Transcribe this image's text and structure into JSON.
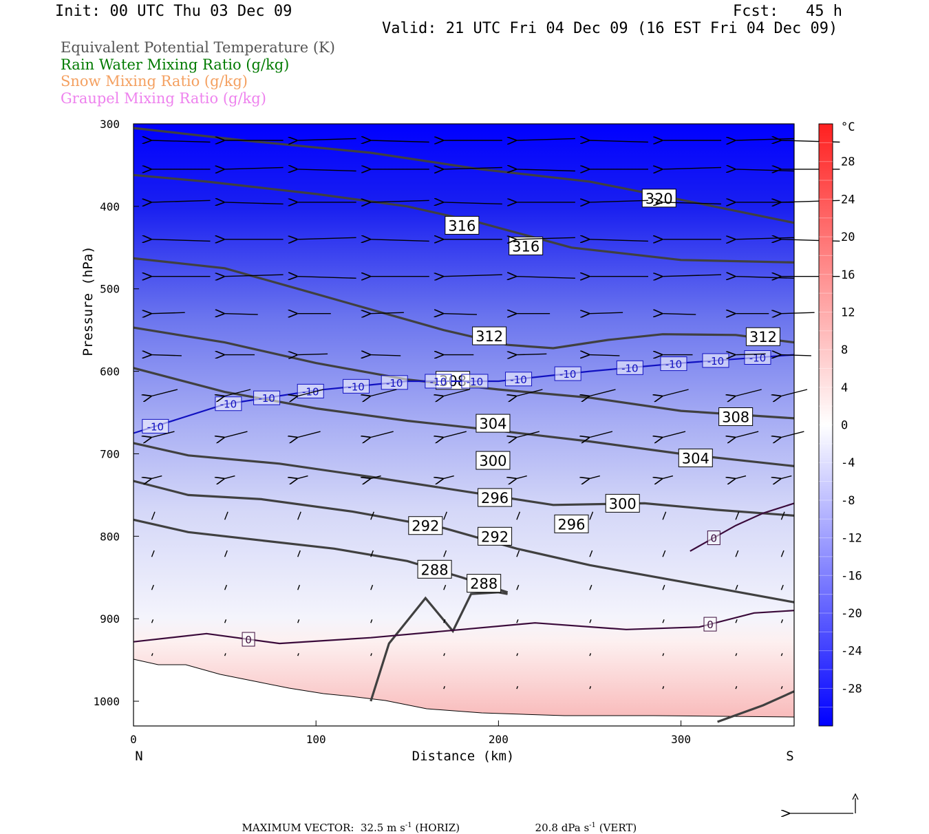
{
  "header": {
    "init": "Init: 00 UTC Thu 03 Dec 09",
    "fcst": "Fcst:   45 h",
    "valid": "Valid: 21 UTC Fri 04 Dec 09 (16 EST Fri 04 Dec 09)"
  },
  "legend": [
    {
      "label": "Equivalent Potential Temperature (K)",
      "color": "#555555"
    },
    {
      "label": "Rain Water Mixing Ratio (g/kg)",
      "color": "#007a00"
    },
    {
      "label": "Snow Mixing Ratio (g/kg)",
      "color": "#f4a060"
    },
    {
      "label": "Graupel Mixing Ratio (g/kg)",
      "color": "#ee82ee"
    }
  ],
  "chart_data": {
    "type": "cross-section",
    "xlabel": "Distance (km)",
    "ylabel": "Pressure (hPa)",
    "xlim": [
      0,
      362
    ],
    "ylim": [
      1030,
      300
    ],
    "x_ticks": [
      0,
      100,
      200,
      300
    ],
    "y_ticks": [
      300,
      400,
      500,
      600,
      700,
      800,
      900,
      1000
    ],
    "x_end_labels": {
      "left": "N",
      "right": "S"
    },
    "colorbar": {
      "unit": "°C",
      "range": [
        -32,
        32
      ],
      "tick_labels": [
        28,
        24,
        20,
        16,
        12,
        8,
        4,
        0,
        -4,
        -8,
        -12,
        -16,
        -20,
        -24,
        -28
      ]
    },
    "theta_e_contours": [
      {
        "label": "320",
        "points": [
          [
            0,
            305
          ],
          [
            60,
            320
          ],
          [
            130,
            335
          ],
          [
            190,
            355
          ],
          [
            250,
            370
          ],
          [
            300,
            392
          ],
          [
            362,
            420
          ]
        ],
        "label_at": [
          288,
          390
        ]
      },
      {
        "label": "316",
        "points": [
          [
            0,
            362
          ],
          [
            40,
            370
          ],
          [
            100,
            385
          ],
          [
            150,
            400
          ],
          [
            190,
            420
          ],
          [
            240,
            450
          ],
          [
            300,
            465
          ],
          [
            362,
            468
          ]
        ],
        "label_at": [
          [
            180,
            423
          ],
          [
            215,
            448
          ]
        ]
      },
      {
        "label": "312",
        "points": [
          [
            0,
            463
          ],
          [
            50,
            475
          ],
          [
            90,
            500
          ],
          [
            130,
            525
          ],
          [
            170,
            550
          ],
          [
            205,
            568
          ],
          [
            230,
            572
          ],
          [
            260,
            562
          ],
          [
            290,
            555
          ],
          [
            330,
            556
          ],
          [
            362,
            565
          ]
        ],
        "label_at": [
          [
            195,
            557
          ],
          [
            345,
            558
          ]
        ]
      },
      {
        "label": "308",
        "points": [
          [
            0,
            547
          ],
          [
            50,
            565
          ],
          [
            100,
            590
          ],
          [
            150,
            610
          ],
          [
            200,
            622
          ],
          [
            250,
            632
          ],
          [
            300,
            648
          ],
          [
            362,
            657
          ]
        ],
        "label_at": [
          [
            175,
            611
          ],
          [
            330,
            655
          ]
        ]
      },
      {
        "label": "304",
        "points": [
          [
            0,
            596
          ],
          [
            50,
            625
          ],
          [
            100,
            645
          ],
          [
            150,
            660
          ],
          [
            200,
            672
          ],
          [
            250,
            685
          ],
          [
            300,
            700
          ],
          [
            362,
            715
          ]
        ],
        "label_at": [
          [
            197,
            663
          ],
          [
            308,
            705
          ]
        ]
      },
      {
        "label": "300",
        "points": [
          [
            0,
            687
          ],
          [
            30,
            702
          ],
          [
            80,
            712
          ],
          [
            130,
            728
          ],
          [
            180,
            745
          ],
          [
            230,
            762
          ],
          [
            280,
            760
          ],
          [
            320,
            768
          ],
          [
            362,
            775
          ]
        ],
        "label_at": [
          [
            197,
            708
          ],
          [
            268,
            760
          ]
        ]
      },
      {
        "label": "296",
        "points": [
          [
            0,
            733
          ],
          [
            30,
            750
          ],
          [
            70,
            755
          ],
          [
            120,
            770
          ],
          [
            170,
            790
          ],
          [
            210,
            815
          ],
          [
            250,
            835
          ],
          [
            300,
            855
          ],
          [
            362,
            880
          ]
        ],
        "label_at": [
          [
            198,
            753
          ],
          [
            240,
            785
          ]
        ]
      },
      {
        "label": "292",
        "points": [
          [
            0,
            780
          ],
          [
            30,
            795
          ],
          [
            70,
            805
          ],
          [
            110,
            815
          ],
          [
            150,
            830
          ],
          [
            180,
            850
          ],
          [
            205,
            868
          ]
        ],
        "label_at": [
          [
            160,
            787
          ],
          [
            198,
            800
          ]
        ]
      },
      {
        "label": "288",
        "points": [
          [
            130,
            1000
          ],
          [
            140,
            930
          ],
          [
            160,
            875
          ],
          [
            175,
            915
          ],
          [
            185,
            870
          ],
          [
            200,
            868
          ],
          [
            205,
            870
          ]
        ],
        "label_at": [
          [
            165,
            840
          ],
          [
            192,
            857
          ]
        ]
      },
      {
        "label": "",
        "points": [
          [
            320,
            1025
          ],
          [
            345,
            1005
          ],
          [
            362,
            988
          ]
        ]
      }
    ],
    "temp_contours": [
      {
        "label": "-10",
        "color": "#1010c0",
        "points": [
          [
            0,
            675
          ],
          [
            50,
            640
          ],
          [
            100,
            623
          ],
          [
            150,
            612
          ],
          [
            200,
            612
          ],
          [
            250,
            600
          ],
          [
            300,
            590
          ],
          [
            362,
            580
          ]
        ],
        "label_xs": [
          12,
          52,
          73,
          97,
          122,
          143,
          167,
          187,
          211,
          238,
          272,
          296,
          319,
          342
        ]
      },
      {
        "label": "0",
        "color": "#3a0a3a",
        "points": [
          [
            0,
            928
          ],
          [
            40,
            918
          ],
          [
            80,
            930
          ],
          [
            130,
            923
          ],
          [
            180,
            913
          ],
          [
            220,
            905
          ],
          [
            270,
            913
          ],
          [
            310,
            910
          ],
          [
            340,
            893
          ],
          [
            362,
            890
          ]
        ],
        "label_xs": [
          63,
          316
        ]
      },
      {
        "label": "0",
        "color": "#3a0a3a",
        "points": [
          [
            305,
            818
          ],
          [
            330,
            787
          ],
          [
            345,
            772
          ],
          [
            362,
            760
          ]
        ],
        "label_xs": [
          318
        ]
      }
    ],
    "max_vector": {
      "horiz": "32.5",
      "horiz_unit": "m s",
      "horiz_sup": "-1",
      "horiz_tag": "(HORIZ)",
      "vert": "20.8",
      "vert_unit": "dPa s",
      "vert_sup": "-1",
      "vert_tag": "(VERT)",
      "prefix": "MAXIMUM VECTOR:"
    }
  }
}
